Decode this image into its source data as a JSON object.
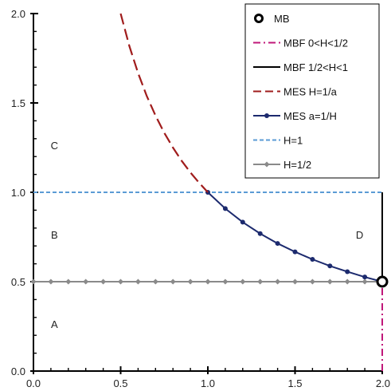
{
  "chart_data": {
    "type": "line",
    "xlim": [
      0,
      2
    ],
    "ylim": [
      0,
      2
    ],
    "x_ticks": [
      "0.0",
      "0.5",
      "1.0",
      "1.5",
      "2.0"
    ],
    "y_ticks": [
      "0.0",
      "0.5",
      "1.0",
      "1.5",
      "2.0"
    ],
    "grid": false,
    "legend_position": "top-right",
    "region_labels": [
      {
        "text": "A",
        "x": 0.12,
        "y": 0.24
      },
      {
        "text": "B",
        "x": 0.12,
        "y": 0.74
      },
      {
        "text": "C",
        "x": 0.12,
        "y": 1.24
      },
      {
        "text": "D",
        "x": 1.87,
        "y": 0.74
      }
    ],
    "series": [
      {
        "name": "MB",
        "style": "point",
        "color": "#000000",
        "points": [
          [
            2.0,
            0.5
          ]
        ]
      },
      {
        "name": "MBF 0<H<1/2",
        "style": "dashdot",
        "color": "#c0187a",
        "points": [
          [
            2.0,
            0.0
          ],
          [
            2.0,
            0.5
          ]
        ]
      },
      {
        "name": "MBF 1/2<H<1",
        "style": "solid",
        "color": "#000000",
        "points": [
          [
            2.0,
            0.5
          ],
          [
            2.0,
            1.0
          ]
        ]
      },
      {
        "name": "MES H=1/a",
        "style": "longdash",
        "color": "#a01c1c",
        "points": [
          [
            0.5,
            2.0
          ],
          [
            0.55,
            1.818
          ],
          [
            0.6,
            1.667
          ],
          [
            0.65,
            1.538
          ],
          [
            0.7,
            1.429
          ],
          [
            0.75,
            1.333
          ],
          [
            0.8,
            1.25
          ],
          [
            0.85,
            1.176
          ],
          [
            0.9,
            1.111
          ],
          [
            0.95,
            1.053
          ],
          [
            1.0,
            1.0
          ]
        ]
      },
      {
        "name": "MES a=1/H",
        "style": "solid-marker-circle",
        "color": "#1c2a6e",
        "points": [
          [
            1.0,
            1.0
          ],
          [
            1.1,
            0.909
          ],
          [
            1.2,
            0.833
          ],
          [
            1.3,
            0.769
          ],
          [
            1.4,
            0.714
          ],
          [
            1.5,
            0.667
          ],
          [
            1.6,
            0.625
          ],
          [
            1.7,
            0.588
          ],
          [
            1.8,
            0.556
          ],
          [
            1.9,
            0.526
          ],
          [
            2.0,
            0.5
          ]
        ]
      },
      {
        "name": "H=1",
        "style": "dashed",
        "color": "#5b9bd5",
        "points": [
          [
            0.0,
            1.0
          ],
          [
            2.0,
            1.0
          ]
        ]
      },
      {
        "name": "H=1/2",
        "style": "solid-marker-diamond",
        "color": "#8a8a8a",
        "points": [
          [
            0.0,
            0.5
          ],
          [
            0.1,
            0.5
          ],
          [
            0.2,
            0.5
          ],
          [
            0.3,
            0.5
          ],
          [
            0.4,
            0.5
          ],
          [
            0.5,
            0.5
          ],
          [
            0.6,
            0.5
          ],
          [
            0.7,
            0.5
          ],
          [
            0.8,
            0.5
          ],
          [
            0.9,
            0.5
          ],
          [
            1.0,
            0.5
          ],
          [
            1.1,
            0.5
          ],
          [
            1.2,
            0.5
          ],
          [
            1.3,
            0.5
          ],
          [
            1.4,
            0.5
          ],
          [
            1.5,
            0.5
          ],
          [
            1.6,
            0.5
          ],
          [
            1.7,
            0.5
          ],
          [
            1.8,
            0.5
          ],
          [
            1.9,
            0.5
          ],
          [
            2.0,
            0.5
          ]
        ]
      }
    ]
  }
}
